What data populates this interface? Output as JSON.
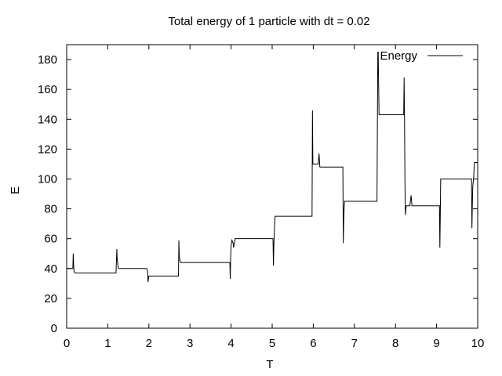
{
  "chart_data": {
    "type": "line",
    "title": "Total energy of 1 particle with dt = 0.02",
    "xlabel": "T",
    "ylabel": "E",
    "xlim": [
      0,
      10
    ],
    "ylim": [
      0,
      190
    ],
    "xticks": [
      0,
      1,
      2,
      3,
      4,
      5,
      6,
      7,
      8,
      9,
      10
    ],
    "yticks": [
      0,
      20,
      40,
      60,
      80,
      100,
      120,
      140,
      160,
      180
    ],
    "grid": false,
    "legend_position": "top-right",
    "line_color": "#000000",
    "series": [
      {
        "name": "Energy",
        "x": [
          0.0,
          0.15,
          0.16,
          0.17,
          0.18,
          0.2,
          1.2,
          1.22,
          1.23,
          1.25,
          1.27,
          1.28,
          1.95,
          1.97,
          1.98,
          2.0,
          2.02,
          2.72,
          2.73,
          2.74,
          2.76,
          2.77,
          3.97,
          3.98,
          3.99,
          4.0,
          4.02,
          4.05,
          4.06,
          4.1,
          4.12,
          5.02,
          5.03,
          5.04,
          5.06,
          5.07,
          5.97,
          5.98,
          5.99,
          6.0,
          6.02,
          6.05,
          6.12,
          6.14,
          6.16,
          6.2,
          6.72,
          6.73,
          6.74,
          6.75,
          6.76,
          6.78,
          7.55,
          7.57,
          7.58,
          7.59,
          7.6,
          7.62,
          8.2,
          8.21,
          8.22,
          8.23,
          8.24,
          8.26,
          8.35,
          8.38,
          8.4,
          8.43,
          8.45,
          9.07,
          9.08,
          9.09,
          9.1,
          9.12,
          9.85,
          9.86,
          9.87,
          9.88,
          9.9,
          9.92,
          10.0
        ],
        "y": [
          40,
          40,
          50,
          42,
          38,
          37,
          37,
          53,
          46,
          41,
          40,
          40,
          40,
          38,
          31,
          35,
          35,
          35,
          59,
          48,
          45,
          44,
          44,
          33,
          48,
          55,
          59,
          57,
          54,
          60,
          60,
          60,
          42,
          55,
          70,
          75,
          75,
          146,
          110,
          110,
          110,
          110,
          110,
          117,
          108,
          108,
          108,
          57,
          71,
          80,
          85,
          85,
          85,
          185,
          185,
          163,
          143,
          143,
          143,
          168,
          140,
          100,
          76,
          82,
          82,
          89,
          82,
          82,
          82,
          82,
          54,
          75,
          100,
          100,
          100,
          67,
          82,
          95,
          100,
          111,
          111
        ]
      }
    ]
  }
}
